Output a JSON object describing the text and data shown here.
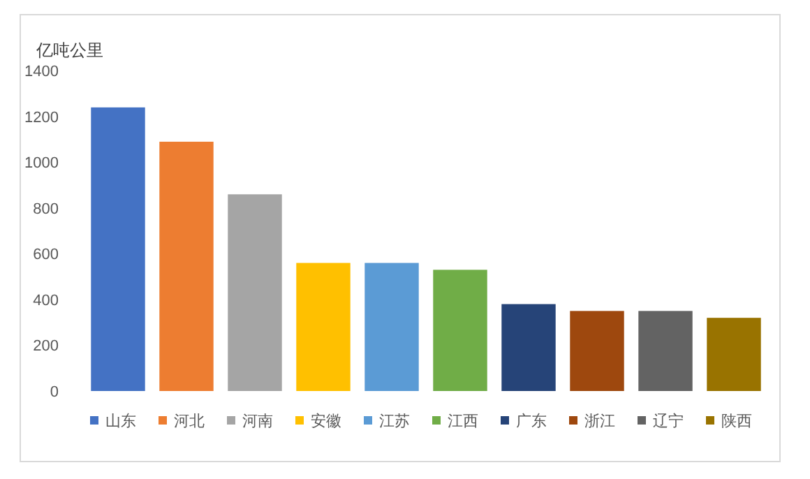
{
  "chart_data": {
    "type": "bar",
    "ylabel": "亿吨公里",
    "categories": [
      "山东",
      "河北",
      "河南",
      "安徽",
      "江苏",
      "江西",
      "广东",
      "浙江",
      "辽宁",
      "陕西"
    ],
    "values": [
      1240,
      1090,
      860,
      560,
      560,
      530,
      380,
      350,
      350,
      320
    ],
    "colors": [
      "#4472c4",
      "#ed7d31",
      "#a5a5a5",
      "#ffc000",
      "#5b9bd5",
      "#70ad47",
      "#264478",
      "#9e480e",
      "#636363",
      "#997300"
    ],
    "ylim": [
      0,
      1400
    ],
    "yticks": [
      0,
      200,
      400,
      600,
      800,
      1000,
      1200,
      1400
    ]
  }
}
